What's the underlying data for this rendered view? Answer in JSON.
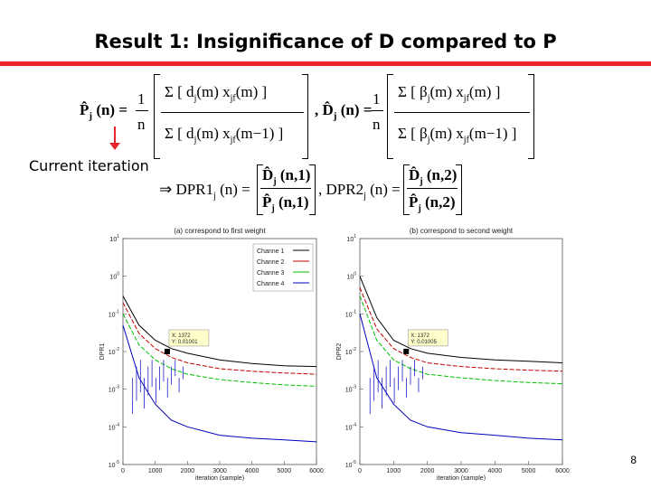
{
  "slide": {
    "title": "Result 1: Insignificance of D compared to P",
    "annotation": "Current iteration",
    "page_number": "8"
  },
  "formulas": {
    "p_hat": "P̂j(n) = 1/n Σ [dj(m) xjf(m)] / Σ [dj(m) xjf(m−1)]",
    "d_hat": "D̂j(n) = 1/n Σ [βj(m) xjf(m)] / Σ [βj(m) xjf(m−1)]",
    "dpr": "⇒ DPR1j(n) = D̂j(n,1)/P̂j(n,1),   DPR2j(n) = D̂j(n,2)/P̂j(n,2)"
  },
  "colors": {
    "accent_rule": "#e8262b",
    "channel1": "#000000",
    "channel2": "#c00000",
    "channel3": "#00c000",
    "channel4": "#0000c0"
  },
  "chart_data": [
    {
      "type": "line",
      "title": "(a) correspond to first weight",
      "xlabel": "iteration (sample)",
      "ylabel": "DPR1",
      "yscale": "log",
      "xlim": [
        0,
        6000
      ],
      "ylim": [
        1e-05,
        10
      ],
      "x_ticks": [
        "0",
        "1000",
        "2000",
        "3000",
        "4000",
        "5000",
        "6000"
      ],
      "y_ticks": [
        "10^1",
        "10^0",
        "10^-1",
        "10^-2",
        "10^-3",
        "10^-4",
        "10^-5"
      ],
      "legend": [
        "Channe 1",
        "Channe 2",
        "Channe 3",
        "Channe 4"
      ],
      "legend_position": "top-right",
      "annotation": {
        "x_label": "X: 1372",
        "y_label": "Y: 0.01001",
        "x": 1372,
        "y": 0.01001
      },
      "series": [
        {
          "name": "Channe 1",
          "x": [
            0,
            500,
            1000,
            1500,
            2000,
            3000,
            4000,
            5000,
            6000
          ],
          "values": [
            0.3,
            0.05,
            0.02,
            0.012,
            0.009,
            0.006,
            0.0048,
            0.0042,
            0.004
          ]
        },
        {
          "name": "Channe 2",
          "x": [
            0,
            500,
            1000,
            1500,
            2000,
            3000,
            4000,
            5000,
            6000
          ],
          "values": [
            0.2,
            0.03,
            0.012,
            0.007,
            0.005,
            0.0035,
            0.003,
            0.0027,
            0.0025
          ]
        },
        {
          "name": "Channe 3",
          "x": [
            0,
            500,
            1000,
            1500,
            2000,
            3000,
            4000,
            5000,
            6000
          ],
          "values": [
            0.1,
            0.015,
            0.006,
            0.0035,
            0.0025,
            0.0018,
            0.0015,
            0.0013,
            0.0012
          ]
        },
        {
          "name": "Channe 4",
          "x": [
            0,
            500,
            1000,
            1500,
            2000,
            3000,
            4000,
            5000,
            6000
          ],
          "values": [
            0.05,
            0.002,
            0.0004,
            0.00015,
            0.0001,
            6e-05,
            5e-05,
            4.5e-05,
            4e-05
          ]
        }
      ]
    },
    {
      "type": "line",
      "title": "(b) correspond to second weight",
      "xlabel": "iteration (sample)",
      "ylabel": "DPR2",
      "yscale": "log",
      "xlim": [
        0,
        6000
      ],
      "ylim": [
        1e-05,
        10
      ],
      "x_ticks": [
        "0",
        "1000",
        "2000",
        "3000",
        "4000",
        "5000",
        "6000"
      ],
      "y_ticks": [
        "10^1",
        "10^0",
        "10^-1",
        "10^-2",
        "10^-3",
        "10^-4",
        "10^-5"
      ],
      "annotation": {
        "x_label": "X: 1372",
        "y_label": "Y: 0.01005",
        "x": 1372,
        "y": 0.01005
      },
      "series": [
        {
          "name": "Channe 1",
          "x": [
            0,
            500,
            1000,
            1500,
            2000,
            3000,
            4000,
            5000,
            6000
          ],
          "values": [
            1.0,
            0.08,
            0.02,
            0.012,
            0.009,
            0.007,
            0.006,
            0.0055,
            0.005
          ]
        },
        {
          "name": "Channe 2",
          "x": [
            0,
            500,
            1000,
            1500,
            2000,
            3000,
            4000,
            5000,
            6000
          ],
          "values": [
            0.5,
            0.04,
            0.012,
            0.007,
            0.005,
            0.004,
            0.0035,
            0.0032,
            0.003
          ]
        },
        {
          "name": "Channe 3",
          "x": [
            0,
            500,
            1000,
            1500,
            2000,
            3000,
            4000,
            5000,
            6000
          ],
          "values": [
            0.3,
            0.02,
            0.006,
            0.0035,
            0.0025,
            0.002,
            0.0017,
            0.0015,
            0.0014
          ]
        },
        {
          "name": "Channe 4",
          "x": [
            0,
            500,
            1000,
            1500,
            2000,
            3000,
            4000,
            5000,
            6000
          ],
          "values": [
            0.1,
            0.002,
            0.0004,
            0.00015,
            0.0001,
            7e-05,
            6e-05,
            5e-05,
            4.5e-05
          ]
        }
      ]
    }
  ]
}
